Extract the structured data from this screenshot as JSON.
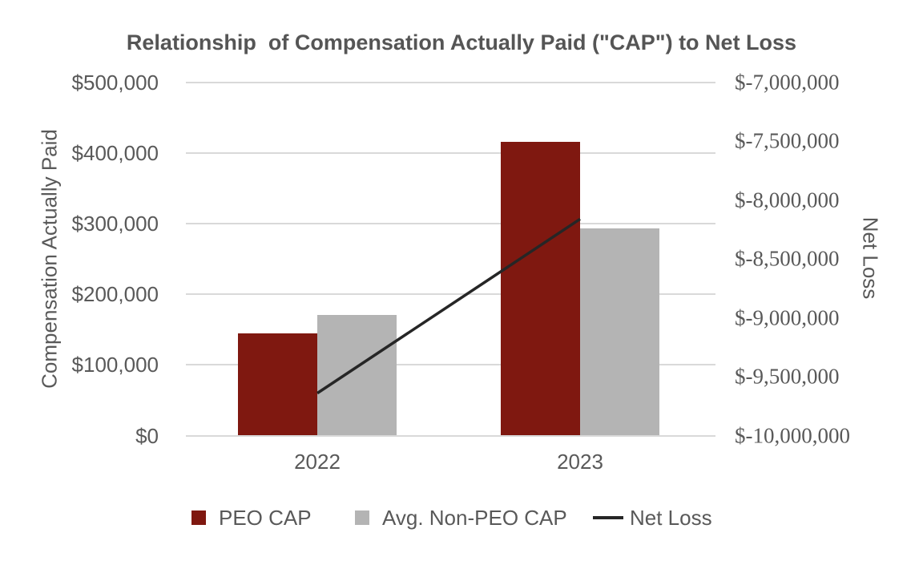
{
  "chart_data": {
    "type": "bar",
    "title": "Relationship  of Compensation Actually Paid (\"CAP\") to Net Loss",
    "categories": [
      "2022",
      "2023"
    ],
    "series": [
      {
        "name": "PEO CAP",
        "type": "bar",
        "axis": "left",
        "color": "#7F1810",
        "values": [
          145000,
          416000
        ]
      },
      {
        "name": "Avg. Non-PEO CAP",
        "type": "bar",
        "axis": "left",
        "color": "#B4B4B4",
        "values": [
          171000,
          293000
        ]
      },
      {
        "name": "Net Loss",
        "type": "line",
        "axis": "right",
        "color": "#262626",
        "values": [
          -9640000,
          -8160000
        ]
      }
    ],
    "left_axis": {
      "label": "Compensation Actually Paid",
      "lim": [
        0,
        500000
      ],
      "ticks": [
        "$500,000",
        "$400,000",
        "$300,000",
        "$200,000",
        "$100,000",
        "$0"
      ]
    },
    "right_axis": {
      "label": "Net Loss",
      "lim": [
        -10000000,
        -7000000
      ],
      "ticks": [
        "$-7,000,000",
        "$-7,500,000",
        "$-8,000,000",
        "$-8,500,000",
        "$-9,000,000",
        "$-9,500,000",
        "$-10,000,000"
      ]
    },
    "legend_position": "bottom",
    "grid": true
  },
  "colors": {
    "peo_cap_bar": "#7F1810",
    "non_peo_cap_bar": "#B4B4B4",
    "net_loss_line": "#262626",
    "gridline": "#D9D9D9",
    "text": "#595959",
    "background": "#FFFFFF"
  }
}
